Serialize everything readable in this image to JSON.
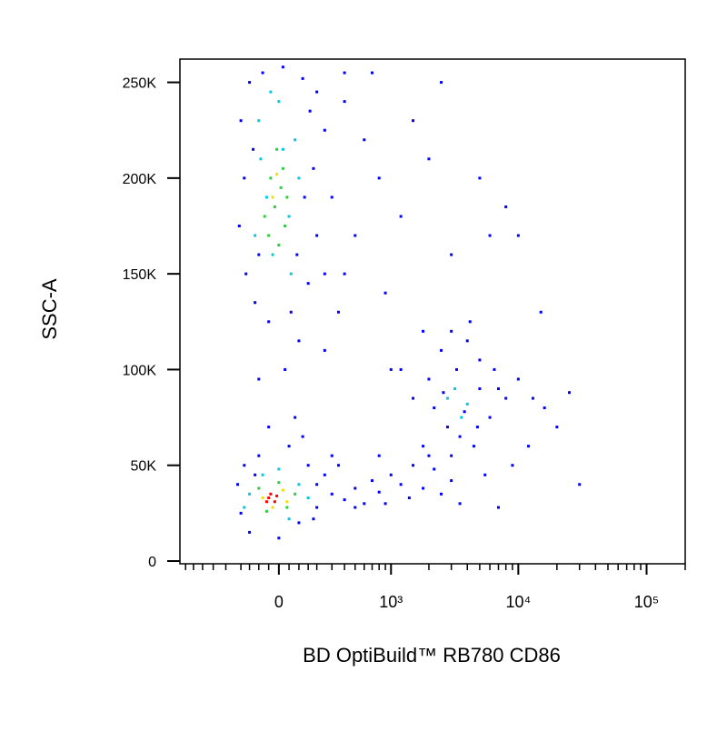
{
  "chart_data": {
    "type": "scatter",
    "x_label": "BD OptiBuild™ RB780 CD86",
    "y_label": "SSC-A",
    "x_scale": "biexponential",
    "xlim": [
      -780,
      200000
    ],
    "ylim": [
      0,
      262144
    ],
    "xticks": [
      0,
      {
        "value": 1000,
        "label": "10³"
      },
      {
        "value": 10000,
        "label": "10⁴"
      },
      {
        "value": 100000,
        "label": "10⁵"
      }
    ],
    "xminorticks": [
      -700,
      -600,
      -500,
      -400,
      -300,
      -200,
      -150,
      -100,
      -50,
      50,
      100,
      150,
      200,
      300,
      400,
      500,
      600,
      700,
      800,
      900,
      2000,
      3000,
      4000,
      5000,
      6000,
      7000,
      8000,
      9000,
      20000,
      30000,
      40000,
      50000,
      60000,
      70000,
      80000,
      90000,
      200000
    ],
    "yticks": [
      0,
      {
        "value": 50000,
        "label": "50K"
      },
      {
        "value": 100000,
        "label": "100K"
      },
      {
        "value": 150000,
        "label": "150K"
      },
      {
        "value": 200000,
        "label": "200K"
      },
      {
        "value": 250000,
        "label": "250K"
      }
    ],
    "series": [
      {
        "color": "#0000ff",
        "x": [
          -150,
          -80,
          20,
          120,
          200,
          -200,
          160,
          250,
          -180,
          180,
          300,
          -210,
          200,
          -170,
          150,
          -120,
          60,
          250,
          400,
          600,
          800,
          1200,
          2000,
          3000,
          500,
          350,
          -50,
          100,
          -100,
          30,
          900,
          1500,
          5000,
          8000,
          10000,
          15000,
          700,
          -130,
          130,
          -100,
          90,
          400,
          250,
          1000,
          1800,
          6000,
          400,
          2500,
          2500,
          3000,
          4000,
          5000,
          2000,
          2200,
          2800,
          3500,
          4500,
          6000,
          7000,
          8000,
          10000,
          13000,
          16000,
          20000,
          12000,
          9000,
          5500,
          3000,
          1800,
          1500,
          1200,
          4200,
          3300,
          5000,
          2600,
          6500,
          3800,
          4800,
          30000,
          25000,
          200,
          300,
          400,
          500,
          600,
          700,
          800,
          1000,
          1200,
          1500,
          1800,
          2200,
          2500,
          3000,
          350,
          500,
          900,
          1400,
          2000,
          800,
          3500,
          7000,
          -200,
          -150,
          0,
          100,
          200,
          -220,
          -100,
          50,
          150,
          250,
          -50,
          80,
          120,
          -180,
          180,
          -120,
          300
        ],
        "y": [
          250000,
          255000,
          258000,
          252000,
          245000,
          230000,
          235000,
          225000,
          200000,
          205000,
          190000,
          175000,
          170000,
          150000,
          145000,
          135000,
          130000,
          150000,
          240000,
          220000,
          200000,
          180000,
          210000,
          160000,
          170000,
          130000,
          125000,
          115000,
          95000,
          100000,
          140000,
          230000,
          200000,
          185000,
          170000,
          130000,
          255000,
          215000,
          190000,
          160000,
          160000,
          150000,
          110000,
          100000,
          120000,
          170000,
          255000,
          250000,
          110000,
          120000,
          115000,
          105000,
          95000,
          80000,
          70000,
          65000,
          60000,
          75000,
          90000,
          85000,
          95000,
          85000,
          80000,
          70000,
          60000,
          50000,
          45000,
          55000,
          60000,
          85000,
          100000,
          125000,
          100000,
          90000,
          88000,
          100000,
          78000,
          70000,
          40000,
          88000,
          40000,
          35000,
          32000,
          38000,
          30000,
          42000,
          36000,
          45000,
          40000,
          50000,
          38000,
          48000,
          35000,
          42000,
          50000,
          28000,
          30000,
          33000,
          55000,
          55000,
          30000,
          28000,
          25000,
          15000,
          12000,
          20000,
          28000,
          40000,
          55000,
          60000,
          50000,
          45000,
          70000,
          75000,
          65000,
          50000,
          22000,
          45000,
          55000
        ]
      },
      {
        "color": "#00c8e6",
        "x": [
          -100,
          0,
          80,
          -60,
          50,
          -120,
          100,
          -30,
          60,
          -90,
          20,
          -40,
          3200,
          4000,
          3600,
          2800,
          -150,
          100,
          -80,
          150,
          0,
          -180,
          50
        ],
        "y": [
          230000,
          240000,
          220000,
          190000,
          180000,
          170000,
          200000,
          160000,
          150000,
          210000,
          215000,
          245000,
          90000,
          82000,
          75000,
          85000,
          35000,
          40000,
          45000,
          33000,
          48000,
          28000,
          22000
        ]
      },
      {
        "color": "#2ecc40",
        "x": [
          -40,
          10,
          -20,
          30,
          -50,
          20,
          -10,
          40,
          -70,
          0,
          -100,
          0,
          80,
          -60,
          40
        ],
        "y": [
          200000,
          195000,
          185000,
          175000,
          170000,
          205000,
          215000,
          190000,
          180000,
          165000,
          38000,
          41000,
          35000,
          26000,
          28000
        ]
      },
      {
        "color": "#f0e000",
        "x": [
          -80,
          20,
          -30,
          40,
          -10,
          -30
        ],
        "y": [
          33000,
          37000,
          28000,
          31000,
          202000,
          190000
        ]
      },
      {
        "color": "#ff0000",
        "x": [
          -50,
          -20,
          -40,
          -10,
          -60
        ],
        "y": [
          33000,
          31000,
          35000,
          34000,
          31000
        ]
      }
    ]
  }
}
